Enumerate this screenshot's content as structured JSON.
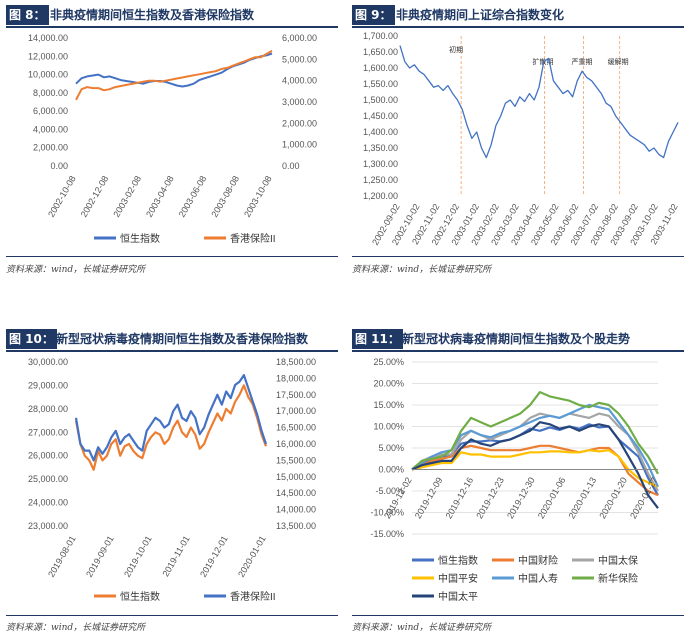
{
  "source_label": "资料来源：wind，长城证券研究所",
  "panels": [
    {
      "tag": "图 8：",
      "title": "非典疫情期间恒生指数及香港保险指数"
    },
    {
      "tag": "图 9：",
      "title": "非典疫情期间上证综合指数变化"
    },
    {
      "tag": "图 10：",
      "title": "新型冠状病毒疫情期间恒生指数及香港保险指数"
    },
    {
      "tag": "图 11：",
      "title": "新型冠状病毒疫情期间恒生指数及个股走势"
    }
  ],
  "chart_data": [
    {
      "type": "line",
      "x_ticks": [
        "2002-10-08",
        "2002-12-08",
        "2003-02-08",
        "2003-04-08",
        "2003-06-08",
        "2003-08-08",
        "2003-10-08"
      ],
      "y_left_ticks": [
        "14,000.00",
        "12,000.00",
        "10,000.00",
        "8,000.00",
        "6,000.00",
        "4,000.00",
        "2,000.00",
        "0.00"
      ],
      "y_right_ticks": [
        "6,000.00",
        "5,000.00",
        "4,000.00",
        "3,000.00",
        "2,000.00",
        "1,000.00",
        "0.00"
      ],
      "ylim_left": [
        0,
        14000
      ],
      "ylim_right": [
        0,
        6000
      ],
      "series": [
        {
          "name": "恒生指数",
          "axis": "left",
          "color": "#4472c4",
          "values": [
            9000,
            9600,
            9800,
            9900,
            10000,
            9700,
            9800,
            9600,
            9400,
            9300,
            9200,
            9100,
            9000,
            9200,
            9300,
            9300,
            9200,
            9000,
            8800,
            8700,
            8800,
            9000,
            9400,
            9600,
            9800,
            10000,
            10200,
            10600,
            10900,
            11100,
            11300,
            11600,
            11800,
            12000,
            12100,
            12300
          ]
        },
        {
          "name": "香港保险II",
          "axis": "right",
          "color": "#ed7d31",
          "values": [
            3100,
            3600,
            3700,
            3650,
            3650,
            3550,
            3600,
            3700,
            3750,
            3800,
            3850,
            3900,
            3950,
            4000,
            4000,
            3950,
            4000,
            4050,
            4100,
            4150,
            4200,
            4250,
            4300,
            4350,
            4400,
            4450,
            4550,
            4600,
            4700,
            4800,
            4900,
            5000,
            5100,
            5100,
            5250,
            5400
          ]
        }
      ]
    },
    {
      "type": "line",
      "x_ticks": [
        "2002-09-02",
        "2002-10-02",
        "2002-11-02",
        "2002-12-02",
        "2003-01-02",
        "2003-02-02",
        "2003-03-02",
        "2003-04-02",
        "2003-05-02",
        "2003-06-02",
        "2003-07-02",
        "2003-08-02",
        "2003-09-02",
        "2003-10-02",
        "2003-11-02"
      ],
      "y_ticks": [
        "1,700.00",
        "1,650.00",
        "1,600.00",
        "1,550.00",
        "1,500.00",
        "1,450.00",
        "1,400.00",
        "1,350.00",
        "1,300.00",
        "1,250.00",
        "1,200.00"
      ],
      "ylim": [
        1200,
        1700
      ],
      "annotations": [
        "初期",
        "扩散期",
        "严重期",
        "缓解期"
      ],
      "series": [
        {
          "name": "上证综合指数",
          "color": "#4472c4",
          "values": [
            1670,
            1620,
            1600,
            1610,
            1590,
            1580,
            1560,
            1540,
            1545,
            1530,
            1545,
            1520,
            1500,
            1470,
            1420,
            1380,
            1400,
            1350,
            1320,
            1360,
            1420,
            1450,
            1490,
            1500,
            1480,
            1510,
            1495,
            1520,
            1500,
            1540,
            1620,
            1630,
            1560,
            1540,
            1520,
            1530,
            1510,
            1560,
            1590,
            1570,
            1560,
            1540,
            1520,
            1490,
            1480,
            1450,
            1430,
            1410,
            1390,
            1380,
            1370,
            1360,
            1340,
            1350,
            1330,
            1320,
            1370,
            1400,
            1430
          ]
        }
      ]
    },
    {
      "type": "line",
      "x_ticks": [
        "2019-08-01",
        "2019-09-01",
        "2019-10-01",
        "2019-11-01",
        "2019-12-01",
        "2020-01-01"
      ],
      "y_left_ticks": [
        "30,000.00",
        "29,000.00",
        "28,000.00",
        "27,000.00",
        "26,000.00",
        "25,000.00",
        "24,000.00",
        "23,000.00"
      ],
      "y_right_ticks": [
        "18,500.00",
        "18,000.00",
        "17,500.00",
        "17,000.00",
        "16,500.00",
        "16,000.00",
        "15,500.00",
        "15,000.00",
        "14,500.00",
        "14,000.00",
        "13,500.00"
      ],
      "ylim_left": [
        23000,
        30000
      ],
      "ylim_right": [
        13500,
        18500
      ],
      "series": [
        {
          "name": "恒生指数",
          "axis": "left",
          "color": "#ed7d31",
          "values": [
            27500,
            26500,
            26000,
            25800,
            25400,
            26200,
            25800,
            26000,
            26500,
            26700,
            26000,
            26400,
            26500,
            26200,
            26000,
            25900,
            26500,
            26800,
            27000,
            26900,
            26500,
            26700,
            27200,
            27500,
            27000,
            26800,
            27200,
            26900,
            26300,
            26500,
            27000,
            27400,
            27800,
            27500,
            28000,
            27800,
            28300,
            28600,
            29000,
            28500,
            28200,
            27600,
            26900,
            26400
          ]
        },
        {
          "name": "香港保险II",
          "axis": "right",
          "color": "#4472c4",
          "values": [
            16800,
            16000,
            15800,
            15800,
            15500,
            15900,
            15700,
            15900,
            16200,
            16400,
            16000,
            16200,
            16300,
            16100,
            15900,
            15800,
            16400,
            16600,
            16800,
            16700,
            16500,
            16600,
            17000,
            17200,
            16800,
            16700,
            17000,
            16800,
            16300,
            16500,
            16900,
            17200,
            17500,
            17200,
            17600,
            17400,
            17800,
            17900,
            18100,
            17700,
            17300,
            16900,
            16400,
            16000
          ]
        }
      ]
    },
    {
      "type": "line",
      "x_ticks": [
        "2019-12-02",
        "2019-12-09",
        "2019-12-16",
        "2019-12-23",
        "2019-12-30",
        "2020-01-06",
        "2020-01-13",
        "2020-01-20",
        "2020-01-27"
      ],
      "y_ticks": [
        "25.00%",
        "20.00%",
        "15.00%",
        "10.00%",
        "5.00%",
        "0.00%",
        "-5.00%",
        "-10.00%",
        "-15.00%"
      ],
      "ylim": [
        -15,
        25
      ],
      "series": [
        {
          "name": "恒生指数",
          "color": "#4472c4",
          "values": [
            0,
            1.5,
            2.5,
            3,
            3.5,
            6,
            6.5,
            6.5,
            6.8,
            6.5,
            7,
            8,
            9.5,
            9,
            9.8,
            9.2,
            10,
            9.5,
            10.5,
            9.8,
            10,
            7,
            5,
            3,
            -2,
            -6
          ]
        },
        {
          "name": "中国财险",
          "color": "#ed7d31",
          "values": [
            0,
            1,
            2,
            2.5,
            3,
            5,
            5.5,
            5,
            4.5,
            4.5,
            4.5,
            4.5,
            5,
            5.5,
            5.5,
            5,
            4.5,
            4,
            4.5,
            5,
            5,
            3,
            -1,
            -3,
            -5,
            -6
          ]
        },
        {
          "name": "中国太保",
          "color": "#a5a5a5",
          "values": [
            0,
            2,
            3,
            3.5,
            3.5,
            7,
            9,
            8,
            7,
            8,
            9,
            10,
            12,
            13,
            12.5,
            12,
            13,
            12.5,
            12,
            13,
            12.5,
            10,
            8,
            4,
            -1,
            -5
          ]
        },
        {
          "name": "中国平安",
          "color": "#ffc000",
          "values": [
            0,
            0.5,
            1,
            1.5,
            1.5,
            4,
            3.5,
            3.5,
            3,
            3,
            3,
            3.5,
            4,
            4,
            4.2,
            4.2,
            4,
            4,
            4.5,
            4.2,
            4.5,
            3,
            0,
            -2,
            -3,
            -4
          ]
        },
        {
          "name": "中国人寿",
          "color": "#5b9bd5",
          "values": [
            0,
            1.5,
            3,
            4,
            4.5,
            8,
            9,
            8,
            7.5,
            8.5,
            9,
            10,
            11,
            12,
            12.5,
            12,
            13,
            14,
            15,
            14.5,
            14,
            11,
            8,
            5,
            1,
            -4
          ]
        },
        {
          "name": "新华保险",
          "color": "#70ad47",
          "values": [
            0,
            2,
            2.5,
            3,
            4.5,
            9,
            12,
            11,
            10,
            11,
            12,
            13,
            15,
            18,
            17,
            16.5,
            16,
            15,
            14.5,
            15.5,
            15,
            13,
            10,
            6,
            3,
            -1
          ]
        },
        {
          "name": "中国太平",
          "color": "#264478",
          "values": [
            0,
            1,
            1.5,
            2,
            2,
            5,
            7,
            6,
            5.5,
            6.5,
            7,
            8,
            9,
            11,
            10.5,
            9.5,
            10,
            9,
            10,
            10.5,
            10,
            7,
            3,
            -1,
            -6,
            -9
          ]
        }
      ]
    }
  ]
}
